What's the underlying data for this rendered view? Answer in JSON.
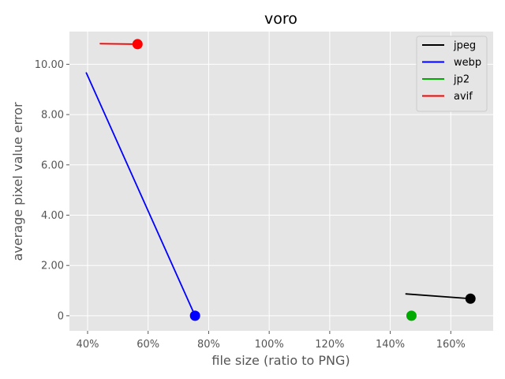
{
  "chart_data": {
    "type": "line",
    "title": "voro",
    "xlabel": "file size (ratio to PNG)",
    "ylabel": "average pixel value error",
    "xlim": [
      0.34,
      1.74
    ],
    "ylim": [
      -0.6,
      11.3
    ],
    "x_ticks": [
      {
        "value": 0.4,
        "label": "40%"
      },
      {
        "value": 0.6,
        "label": "60%"
      },
      {
        "value": 0.8,
        "label": "80%"
      },
      {
        "value": 1.0,
        "label": "100%"
      },
      {
        "value": 1.2,
        "label": "120%"
      },
      {
        "value": 1.4,
        "label": "140%"
      },
      {
        "value": 1.6,
        "label": "160%"
      }
    ],
    "y_ticks": [
      {
        "value": 0,
        "label": "0"
      },
      {
        "value": 2,
        "label": "2.00"
      },
      {
        "value": 4,
        "label": "4.00"
      },
      {
        "value": 6,
        "label": "6.00"
      },
      {
        "value": 8,
        "label": "8.00"
      },
      {
        "value": 10,
        "label": "10.00"
      }
    ],
    "grid": true,
    "legend_position": "top-right",
    "background_color": "#e5e5e5",
    "grid_color": "#ffffff",
    "series": [
      {
        "name": "jpeg",
        "color": "#000000",
        "x": [
          1.45,
          1.665
        ],
        "y": [
          0.87,
          0.68
        ],
        "marker": {
          "x": 1.665,
          "y": 0.68
        }
      },
      {
        "name": "webp",
        "color": "#0000ff",
        "x": [
          0.395,
          0.755
        ],
        "y": [
          9.68,
          0.0
        ],
        "marker": {
          "x": 0.755,
          "y": 0.0
        }
      },
      {
        "name": "jp2",
        "color": "#00aa00",
        "x": [
          1.47
        ],
        "y": [
          0.0
        ],
        "marker": {
          "x": 1.47,
          "y": 0.0
        }
      },
      {
        "name": "avif",
        "color": "#ff0000",
        "x": [
          0.44,
          0.565
        ],
        "y": [
          10.82,
          10.8
        ],
        "marker": {
          "x": 0.565,
          "y": 10.8
        }
      }
    ]
  }
}
